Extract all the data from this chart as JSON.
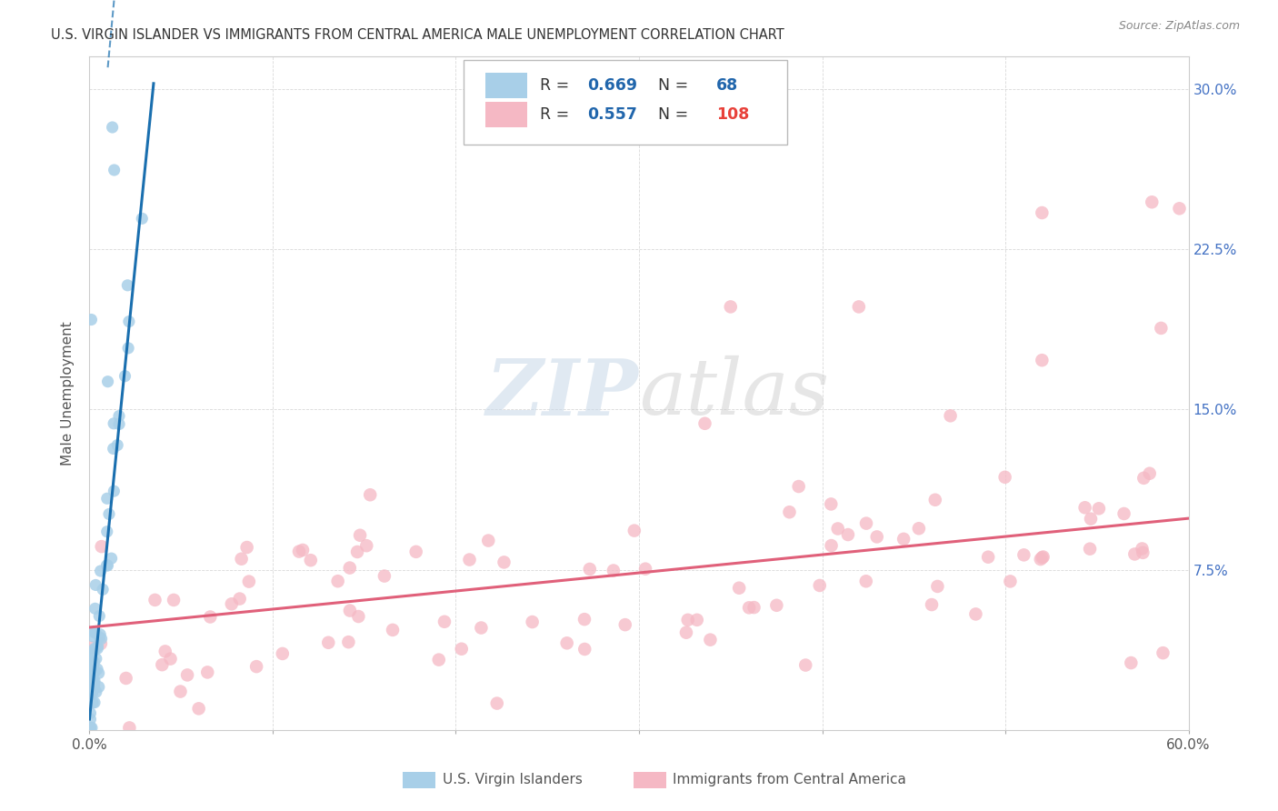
{
  "title": "U.S. VIRGIN ISLANDER VS IMMIGRANTS FROM CENTRAL AMERICA MALE UNEMPLOYMENT CORRELATION CHART",
  "source": "Source: ZipAtlas.com",
  "ylabel": "Male Unemployment",
  "xlim": [
    0.0,
    0.6
  ],
  "ylim": [
    0.0,
    0.315
  ],
  "blue_R": 0.669,
  "blue_N": 68,
  "pink_R": 0.557,
  "pink_N": 108,
  "blue_scatter_color": "#a8cfe8",
  "pink_scatter_color": "#f5b8c4",
  "blue_line_color": "#1a6faf",
  "pink_line_color": "#e0607a",
  "watermark_zip": "ZIP",
  "watermark_atlas": "atlas",
  "legend_label_blue": "U.S. Virgin Islanders",
  "legend_label_pink": "Immigrants from Central America",
  "blue_slope": 8.5,
  "blue_intercept": 0.005,
  "pink_slope": 0.085,
  "pink_intercept": 0.048
}
